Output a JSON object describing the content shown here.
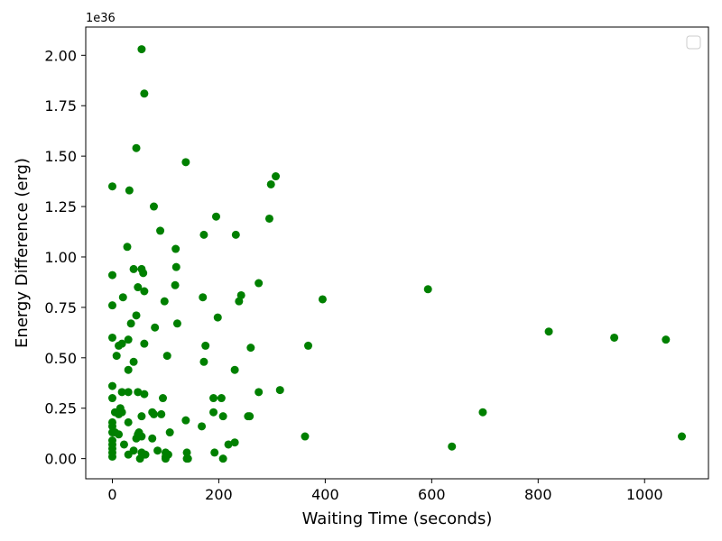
{
  "chart_data": {
    "type": "scatter",
    "xlabel": "Waiting Time (seconds)",
    "ylabel": "Energy Difference (erg)",
    "y_offset_label": "1e36",
    "xlim": [
      -50,
      1120
    ],
    "ylim": [
      -0.1,
      2.14
    ],
    "xticks": [
      0,
      200,
      400,
      600,
      800,
      1000
    ],
    "xtick_labels": [
      "0",
      "200",
      "400",
      "600",
      "800",
      "1000"
    ],
    "yticks": [
      0.0,
      0.25,
      0.5,
      0.75,
      1.0,
      1.25,
      1.5,
      1.75,
      2.0
    ],
    "ytick_labels": [
      "0.00",
      "0.25",
      "0.50",
      "0.75",
      "1.00",
      "1.25",
      "1.50",
      "1.75",
      "2.00"
    ],
    "grid": false,
    "legend": "top-right (empty)",
    "marker_color": "#008000",
    "series": [
      {
        "points": [
          [
            55,
            2.03
          ],
          [
            60,
            1.81
          ],
          [
            45,
            1.54
          ],
          [
            138,
            1.47
          ],
          [
            0,
            1.35
          ],
          [
            32,
            1.33
          ],
          [
            307,
            1.4
          ],
          [
            298,
            1.36
          ],
          [
            295,
            1.19
          ],
          [
            195,
            1.2
          ],
          [
            78,
            1.25
          ],
          [
            90,
            1.13
          ],
          [
            172,
            1.11
          ],
          [
            232,
            1.11
          ],
          [
            28,
            1.05
          ],
          [
            119,
            1.04
          ],
          [
            0,
            0.91
          ],
          [
            40,
            0.94
          ],
          [
            55,
            0.94
          ],
          [
            58,
            0.92
          ],
          [
            120,
            0.95
          ],
          [
            48,
            0.85
          ],
          [
            60,
            0.83
          ],
          [
            118,
            0.86
          ],
          [
            20,
            0.8
          ],
          [
            98,
            0.78
          ],
          [
            170,
            0.8
          ],
          [
            238,
            0.78
          ],
          [
            242,
            0.81
          ],
          [
            275,
            0.87
          ],
          [
            395,
            0.79
          ],
          [
            593,
            0.84
          ],
          [
            0,
            0.76
          ],
          [
            45,
            0.71
          ],
          [
            35,
            0.67
          ],
          [
            80,
            0.65
          ],
          [
            122,
            0.67
          ],
          [
            198,
            0.7
          ],
          [
            0,
            0.6
          ],
          [
            30,
            0.59
          ],
          [
            60,
            0.57
          ],
          [
            12,
            0.56
          ],
          [
            18,
            0.57
          ],
          [
            175,
            0.56
          ],
          [
            260,
            0.55
          ],
          [
            368,
            0.56
          ],
          [
            820,
            0.63
          ],
          [
            943,
            0.6
          ],
          [
            1040,
            0.59
          ],
          [
            8,
            0.51
          ],
          [
            103,
            0.51
          ],
          [
            40,
            0.48
          ],
          [
            172,
            0.48
          ],
          [
            30,
            0.44
          ],
          [
            230,
            0.44
          ],
          [
            0,
            0.36
          ],
          [
            18,
            0.33
          ],
          [
            30,
            0.33
          ],
          [
            48,
            0.33
          ],
          [
            60,
            0.32
          ],
          [
            95,
            0.3
          ],
          [
            190,
            0.3
          ],
          [
            205,
            0.3
          ],
          [
            275,
            0.33
          ],
          [
            315,
            0.34
          ],
          [
            0,
            0.3
          ],
          [
            15,
            0.25
          ],
          [
            18,
            0.23
          ],
          [
            5,
            0.23
          ],
          [
            12,
            0.22
          ],
          [
            55,
            0.21
          ],
          [
            75,
            0.23
          ],
          [
            78,
            0.22
          ],
          [
            92,
            0.22
          ],
          [
            190,
            0.23
          ],
          [
            208,
            0.21
          ],
          [
            255,
            0.21
          ],
          [
            258,
            0.21
          ],
          [
            696,
            0.23
          ],
          [
            0,
            0.18
          ],
          [
            0,
            0.16
          ],
          [
            30,
            0.18
          ],
          [
            138,
            0.19
          ],
          [
            168,
            0.16
          ],
          [
            0,
            0.13
          ],
          [
            5,
            0.13
          ],
          [
            12,
            0.12
          ],
          [
            48,
            0.12
          ],
          [
            50,
            0.13
          ],
          [
            55,
            0.11
          ],
          [
            45,
            0.1
          ],
          [
            75,
            0.1
          ],
          [
            108,
            0.13
          ],
          [
            362,
            0.11
          ],
          [
            1070,
            0.11
          ],
          [
            0,
            0.09
          ],
          [
            0,
            0.07
          ],
          [
            22,
            0.07
          ],
          [
            218,
            0.07
          ],
          [
            230,
            0.08
          ],
          [
            0,
            0.05
          ],
          [
            0,
            0.03
          ],
          [
            40,
            0.04
          ],
          [
            55,
            0.03
          ],
          [
            62,
            0.02
          ],
          [
            85,
            0.04
          ],
          [
            100,
            0.03
          ],
          [
            140,
            0.03
          ],
          [
            192,
            0.03
          ],
          [
            638,
            0.06
          ],
          [
            0,
            0.01
          ],
          [
            30,
            0.02
          ],
          [
            100,
            0.01
          ],
          [
            105,
            0.02
          ],
          [
            140,
            0.0
          ],
          [
            142,
            0.0
          ],
          [
            52,
            0.0
          ],
          [
            100,
            0.0
          ],
          [
            208,
            0.0
          ]
        ]
      }
    ]
  }
}
